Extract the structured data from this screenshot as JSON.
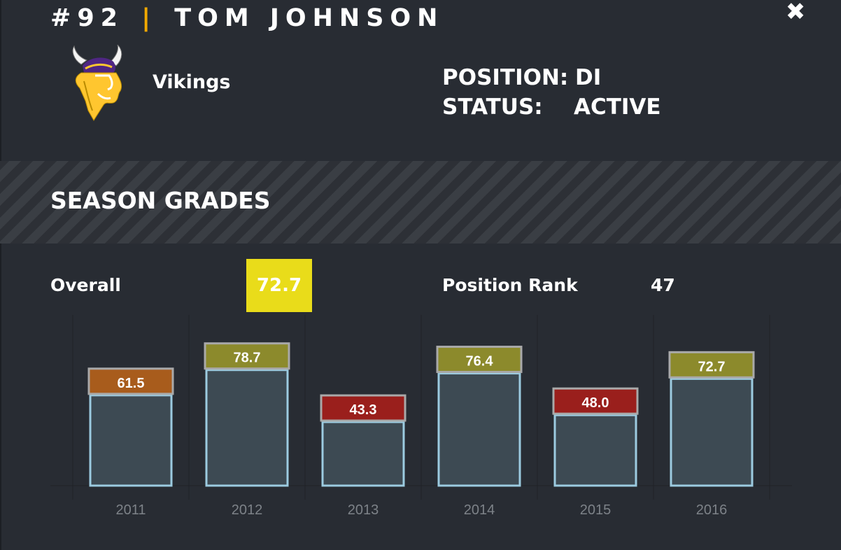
{
  "header": {
    "number": "#92",
    "separator": "|",
    "player_name": "TOM JOHNSON",
    "close_symbol": "✖"
  },
  "team": {
    "name": "Vikings"
  },
  "info": {
    "position_label": "POSITION:",
    "position_value": "DI",
    "status_label": "STATUS:",
    "status_value": "ACTIVE"
  },
  "section": {
    "title": "SEASON GRADES"
  },
  "summary": {
    "overall_label": "Overall",
    "overall_value": "72.7",
    "rank_label": "Position Rank",
    "rank_value": "47"
  },
  "colors": {
    "accent": "#f2a900",
    "badge": "#e9dc1a",
    "grade_orange": "#a85c1c",
    "grade_olive": "#8c8a2c",
    "grade_red": "#9a1f1c",
    "bar_fill": "#3d4a53",
    "bar_stroke": "#9ccbe0"
  },
  "chart_data": {
    "type": "bar",
    "title": "SEASON GRADES",
    "xlabel": "",
    "ylabel": "",
    "ylim": [
      0,
      100
    ],
    "categories": [
      "2011",
      "2012",
      "2013",
      "2014",
      "2015",
      "2016"
    ],
    "values": [
      61.5,
      78.7,
      43.3,
      76.4,
      48.0,
      72.7
    ],
    "labels": [
      "61.5",
      "78.7",
      "43.3",
      "76.4",
      "48.0",
      "72.7"
    ],
    "label_colors": [
      "#a85c1c",
      "#8c8a2c",
      "#9a1f1c",
      "#8c8a2c",
      "#9a1f1c",
      "#8c8a2c"
    ],
    "grid": false
  }
}
